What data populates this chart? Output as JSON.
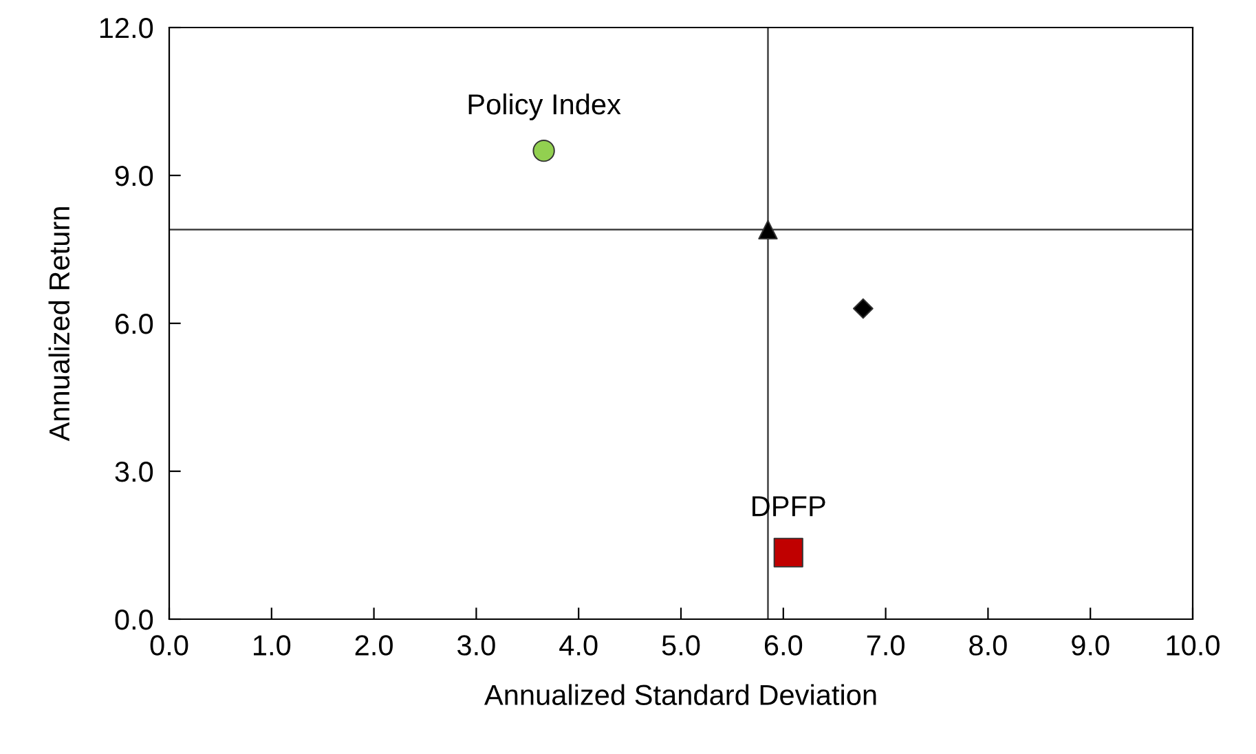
{
  "chart_data": {
    "type": "scatter",
    "xlabel": "Annualized Standard Deviation",
    "ylabel": "Annualized Return",
    "xlim": [
      0,
      10
    ],
    "ylim": [
      0,
      12
    ],
    "xticks": [
      {
        "value": 0,
        "label": "0.0"
      },
      {
        "value": 1,
        "label": "1.0"
      },
      {
        "value": 2,
        "label": "2.0"
      },
      {
        "value": 3,
        "label": "3.0"
      },
      {
        "value": 4,
        "label": "4.0"
      },
      {
        "value": 5,
        "label": "5.0"
      },
      {
        "value": 6,
        "label": "6.0"
      },
      {
        "value": 7,
        "label": "7.0"
      },
      {
        "value": 8,
        "label": "8.0"
      },
      {
        "value": 9,
        "label": "9.0"
      },
      {
        "value": 10,
        "label": "10.0"
      }
    ],
    "yticks": [
      {
        "value": 0,
        "label": "0.0"
      },
      {
        "value": 3,
        "label": "3.0"
      },
      {
        "value": 6,
        "label": "6.0"
      },
      {
        "value": 9,
        "label": "9.0"
      },
      {
        "value": 12,
        "label": "12.0"
      }
    ],
    "series": [
      {
        "name": "Policy Index",
        "color": "#92d050",
        "marker": "circle",
        "x": [
          3.66
        ],
        "values": [
          9.5
        ]
      },
      {
        "color": "#000000",
        "marker": "triangle",
        "x": [
          5.85
        ],
        "values": [
          7.9
        ]
      },
      {
        "color": "#000000",
        "marker": "diamond",
        "x": [
          6.78
        ],
        "values": [
          6.3
        ]
      },
      {
        "name": "DPFP",
        "color": "#c00000",
        "marker": "square",
        "x": [
          6.05
        ],
        "values": [
          1.35
        ]
      }
    ],
    "ref_lines": [
      {
        "axis": "x",
        "value": 5.85,
        "color": "#404040"
      },
      {
        "axis": "y",
        "value": 7.9,
        "color": "#404040"
      }
    ],
    "grid": false,
    "legend": false
  }
}
